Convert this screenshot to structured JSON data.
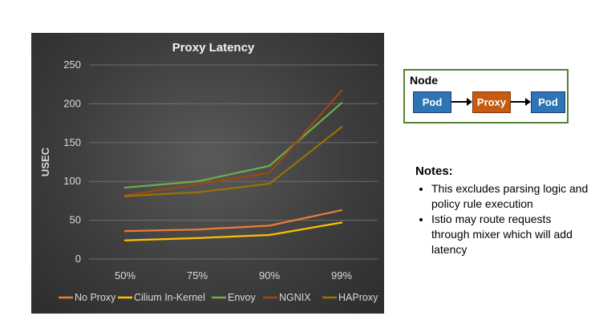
{
  "chart_data": {
    "type": "line",
    "title": "Proxy Latency",
    "ylabel": "USEC",
    "xlabel": "",
    "categories": [
      "50%",
      "75%",
      "90%",
      "99%"
    ],
    "ylim": [
      0,
      250
    ],
    "yticks": [
      0,
      50,
      100,
      150,
      200,
      250
    ],
    "grid": true,
    "legend_position": "bottom",
    "series": [
      {
        "name": "No Proxy",
        "color": "#ed7d31",
        "values": [
          36,
          38,
          43,
          63
        ]
      },
      {
        "name": "Cilium In-Kernel",
        "color": "#ffc000",
        "values": [
          24,
          27,
          31,
          47
        ]
      },
      {
        "name": "Envoy",
        "color": "#70ad47",
        "values": [
          92,
          100,
          120,
          201
        ]
      },
      {
        "name": "NGNIX",
        "color": "#9e480e",
        "values": [
          82,
          96,
          111,
          217
        ]
      },
      {
        "name": "HAProxy",
        "color": "#997300",
        "values": [
          81,
          86,
          97,
          170
        ]
      }
    ]
  },
  "diagram": {
    "title": "Node",
    "pod_left": "Pod",
    "proxy": "Proxy",
    "pod_right": "Pod"
  },
  "notes": {
    "title": "Notes:",
    "items": [
      "This excludes parsing logic and policy rule execution",
      "Istio may route requests through mixer which will add latency"
    ]
  }
}
